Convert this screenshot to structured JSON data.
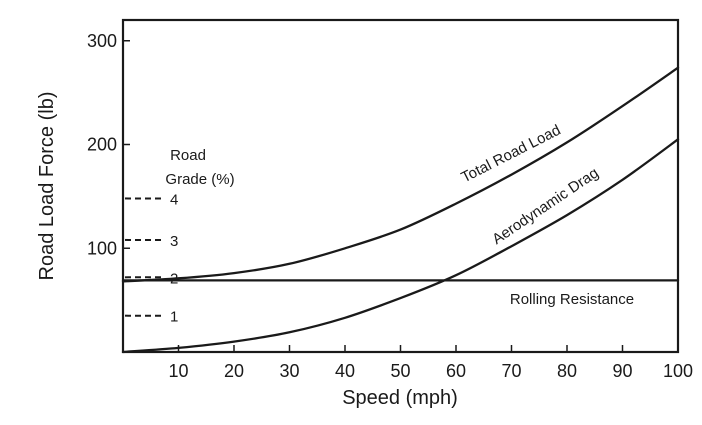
{
  "chart_data": {
    "type": "line",
    "title": "",
    "xlabel": "Speed (mph)",
    "ylabel": "Road Load Force (lb)",
    "xlim": [
      0,
      100
    ],
    "ylim": [
      0,
      320
    ],
    "x_ticks": [
      10,
      20,
      30,
      40,
      50,
      60,
      70,
      80,
      90,
      100
    ],
    "y_ticks": [
      100,
      200,
      300
    ],
    "grid": false,
    "series": [
      {
        "name": "Total Road Load",
        "x": [
          0,
          10,
          20,
          30,
          40,
          50,
          60,
          70,
          80,
          90,
          100
        ],
        "y": [
          68,
          71,
          76,
          85,
          100,
          118,
          143,
          171,
          202,
          237,
          274
        ]
      },
      {
        "name": "Aerodynamic Drag",
        "x": [
          0,
          10,
          20,
          30,
          40,
          50,
          60,
          70,
          80,
          90,
          100
        ],
        "y": [
          0,
          4,
          10,
          19,
          33,
          52,
          74,
          102,
          132,
          166,
          205
        ]
      },
      {
        "name": "Rolling Resistance",
        "x": [
          0,
          100
        ],
        "y": [
          69,
          69
        ]
      }
    ],
    "road_grade": {
      "title_line1": "Road",
      "title_line2": "Grade (%)",
      "levels": [
        {
          "label": "1",
          "y": 35
        },
        {
          "label": "2",
          "y": 72
        },
        {
          "label": "3",
          "y": 108
        },
        {
          "label": "4",
          "y": 148
        }
      ]
    }
  }
}
